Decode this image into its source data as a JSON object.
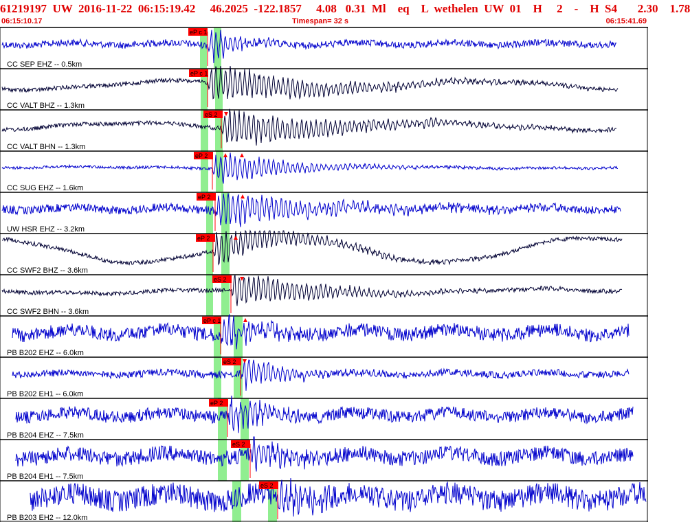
{
  "header": {
    "event_summary": "61219197  UW  2016-11-22  06:15:19.42     46.2025  -122.1857     4.08   0.31  Ml    eq    L  wethelen  UW  01    H     2    -    H  S4       2.30    1.78",
    "start_time": "06:15:10.17",
    "timespan_label": "Timespan=  32 s",
    "end_time": "06:15:41.69"
  },
  "colors": {
    "header": "#e00000",
    "trace_blue": "#0000cc",
    "trace_black": "#000033",
    "pick": "#ff0000",
    "window": "#90ee90"
  },
  "icons": {
    "pick_flag": "red-rectangle-label",
    "arrow_down": "red-triangle-down",
    "arrow_up": "red-triangle-up"
  },
  "panels": [
    {
      "label": "CC SEP EHZ -- 0.5km",
      "color": "blue",
      "picks": [
        {
          "label": "eP c 1"
        }
      ]
    },
    {
      "label": "CC VALT BHZ -- 1.3km",
      "color": "black",
      "picks": [
        {
          "label": "eP c 1"
        }
      ]
    },
    {
      "label": "CC VALT BHN -- 1.3km",
      "color": "black",
      "picks": [
        {
          "label": "eS 2"
        }
      ]
    },
    {
      "label": "CC SUG EHZ -- 1.6km",
      "color": "blue",
      "picks": [
        {
          "label": "eP 2"
        }
      ]
    },
    {
      "label": "UW HSR EHZ -- 3.2km",
      "color": "blue",
      "picks": [
        {
          "label": "eP 2"
        }
      ]
    },
    {
      "label": "CC SWF2 BHZ -- 3.6km",
      "color": "black",
      "picks": [
        {
          "label": "eP 2"
        }
      ]
    },
    {
      "label": "CC SWF2 BHN -- 3.6km",
      "color": "black",
      "picks": [
        {
          "label": "eS 2"
        }
      ]
    },
    {
      "label": "PB B202 EHZ -- 6.0km",
      "color": "blue",
      "picks": [
        {
          "label": "eP c 1"
        }
      ]
    },
    {
      "label": "PB B202 EH1 -- 6.0km",
      "color": "blue",
      "picks": [
        {
          "label": "eS 2"
        }
      ]
    },
    {
      "label": "PB B204 EHZ -- 7.5km",
      "color": "blue",
      "picks": [
        {
          "label": "eP 2"
        }
      ]
    },
    {
      "label": "PB B204 EH1 -- 7.5km",
      "color": "blue",
      "picks": [
        {
          "label": "eS 2"
        }
      ]
    },
    {
      "label": "PB B203 EH2 -- 12.0km",
      "color": "blue",
      "picks": [
        {
          "label": "eS 2"
        }
      ]
    }
  ]
}
